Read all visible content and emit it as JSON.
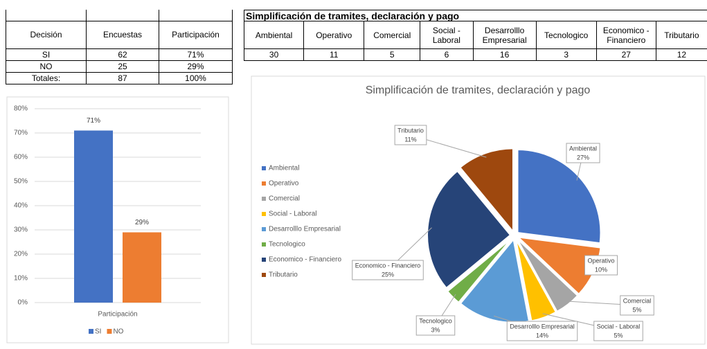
{
  "table1": {
    "headers": [
      "Decisión",
      "Encuestas",
      "Participación"
    ],
    "rows": [
      [
        "SI",
        62,
        "71%"
      ],
      [
        "NO",
        25,
        "29%"
      ],
      [
        "Totales:",
        87,
        "100%"
      ]
    ]
  },
  "table2": {
    "title": "Simplificación de tramites, declaración y pago",
    "headers": [
      "Ambiental",
      "Operativo",
      "Comercial",
      "Social - Laboral",
      "Desarrolllo Empresarial",
      "Tecnologico",
      "Economico - Financiero",
      "Tributario"
    ],
    "values": [
      30,
      11,
      5,
      6,
      16,
      3,
      27,
      12
    ]
  },
  "chart_data": [
    {
      "type": "bar",
      "categories": [
        "Participación"
      ],
      "series": [
        {
          "name": "SI",
          "color": "#4472c4",
          "values": [
            71
          ],
          "value_labels": [
            "71%"
          ]
        },
        {
          "name": "NO",
          "color": "#ed7d31",
          "values": [
            29
          ],
          "value_labels": [
            "29%"
          ]
        }
      ],
      "ylim": [
        0,
        80
      ],
      "yticks": [
        {
          "value": 0,
          "label": "0%"
        },
        {
          "value": 10,
          "label": "10%"
        },
        {
          "value": 20,
          "label": "20%"
        },
        {
          "value": 30,
          "label": "30%"
        },
        {
          "value": 40,
          "label": "40%"
        },
        {
          "value": 50,
          "label": "50%"
        },
        {
          "value": 60,
          "label": "60%"
        },
        {
          "value": 70,
          "label": "70%"
        },
        {
          "value": 80,
          "label": "80%"
        }
      ],
      "grid": true,
      "legend": "bottom"
    },
    {
      "type": "pie",
      "title": "Simplificación de tramites, declaración y pago",
      "categories": [
        "Ambiental",
        "Operativo",
        "Comercial",
        "Social - Laboral",
        "Desarrolllo Empresarial",
        "Tecnologico",
        "Economico - Financiero",
        "Tributario"
      ],
      "values": [
        27,
        10,
        5,
        5,
        14,
        3,
        25,
        11
      ],
      "value_labels": [
        "27%",
        "10%",
        "5%",
        "5%",
        "14%",
        "3%",
        "25%",
        "11%"
      ],
      "colors": [
        "#4472c4",
        "#ed7d31",
        "#a5a5a5",
        "#ffc000",
        "#5b9bd5",
        "#70ad47",
        "#264478",
        "#9e480e"
      ],
      "legend": "left"
    }
  ]
}
